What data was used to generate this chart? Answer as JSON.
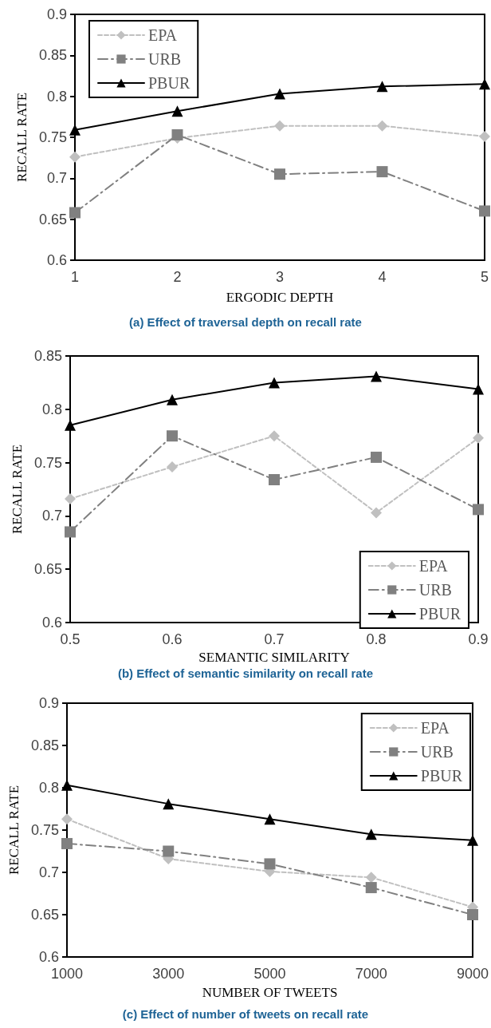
{
  "chart_data": [
    {
      "type": "line",
      "xlabel": "ERGODIC DEPTH",
      "ylabel": "RECALL RATE",
      "annotations": [
        "(a) Effect of traversal depth on recall rate"
      ],
      "x": [
        1,
        2,
        3,
        4,
        5
      ],
      "xlim": [
        1,
        5
      ],
      "xticks": [
        1,
        2,
        3,
        4,
        5
      ],
      "ylim": [
        0.6,
        0.9
      ],
      "yticks": [
        0.6,
        0.65,
        0.7,
        0.75,
        0.8,
        0.85,
        0.9
      ],
      "grid": false,
      "legend": "top left",
      "series": [
        {
          "name": "EPA",
          "color": "#c0c0c0",
          "marker": "diamond",
          "line_style": "dashed",
          "values": [
            0.726,
            0.749,
            0.764,
            0.764,
            0.751
          ]
        },
        {
          "name": "URB",
          "color": "#808080",
          "marker": "square",
          "line_style": "dashdot",
          "values": [
            0.658,
            0.753,
            0.705,
            0.708,
            0.66
          ]
        },
        {
          "name": "PBUR",
          "color": "#000000",
          "marker": "triangle",
          "line_style": "solid",
          "values": [
            0.759,
            0.782,
            0.803,
            0.812,
            0.815
          ]
        }
      ]
    },
    {
      "type": "line",
      "xlabel": "SEMANTIC SIMILARITY",
      "ylabel": "RECALL RATE",
      "annotations": [
        "(b) Effect of semantic similarity on recall rate"
      ],
      "x": [
        0.5,
        0.6,
        0.7,
        0.8,
        0.9
      ],
      "xlim": [
        0.5,
        0.9
      ],
      "xticks": [
        0.5,
        0.6,
        0.7,
        0.8,
        0.9
      ],
      "ylim": [
        0.6,
        0.85
      ],
      "yticks": [
        0.6,
        0.65,
        0.7,
        0.75,
        0.8,
        0.85
      ],
      "grid": false,
      "legend": "bottom right",
      "series": [
        {
          "name": "EPA",
          "color": "#c0c0c0",
          "marker": "diamond",
          "line_style": "dashed",
          "values": [
            0.716,
            0.746,
            0.775,
            0.703,
            0.773
          ]
        },
        {
          "name": "URB",
          "color": "#808080",
          "marker": "square",
          "line_style": "dashdot",
          "values": [
            0.685,
            0.775,
            0.734,
            0.755,
            0.706
          ]
        },
        {
          "name": "PBUR",
          "color": "#000000",
          "marker": "triangle",
          "line_style": "solid",
          "values": [
            0.785,
            0.809,
            0.825,
            0.831,
            0.819
          ]
        }
      ]
    },
    {
      "type": "line",
      "xlabel": "NUMBER OF TWEETS",
      "ylabel": "RECALL RATE",
      "annotations": [
        "(c) Effect of number of tweets on recall rate"
      ],
      "x": [
        1000,
        3000,
        5000,
        7000,
        9000
      ],
      "xlim": [
        1000,
        9000
      ],
      "xticks": [
        1000,
        3000,
        5000,
        7000,
        9000
      ],
      "ylim": [
        0.6,
        0.9
      ],
      "yticks": [
        0.6,
        0.65,
        0.7,
        0.75,
        0.8,
        0.85,
        0.9
      ],
      "grid": false,
      "legend": "top right",
      "series": [
        {
          "name": "EPA",
          "color": "#c0c0c0",
          "marker": "diamond",
          "line_style": "dashed",
          "values": [
            0.763,
            0.716,
            0.701,
            0.694,
            0.659
          ]
        },
        {
          "name": "URB",
          "color": "#808080",
          "marker": "square",
          "line_style": "dashdot",
          "values": [
            0.734,
            0.725,
            0.71,
            0.682,
            0.65
          ]
        },
        {
          "name": "PBUR",
          "color": "#000000",
          "marker": "triangle",
          "line_style": "solid",
          "values": [
            0.803,
            0.781,
            0.763,
            0.745,
            0.738
          ]
        }
      ]
    }
  ]
}
